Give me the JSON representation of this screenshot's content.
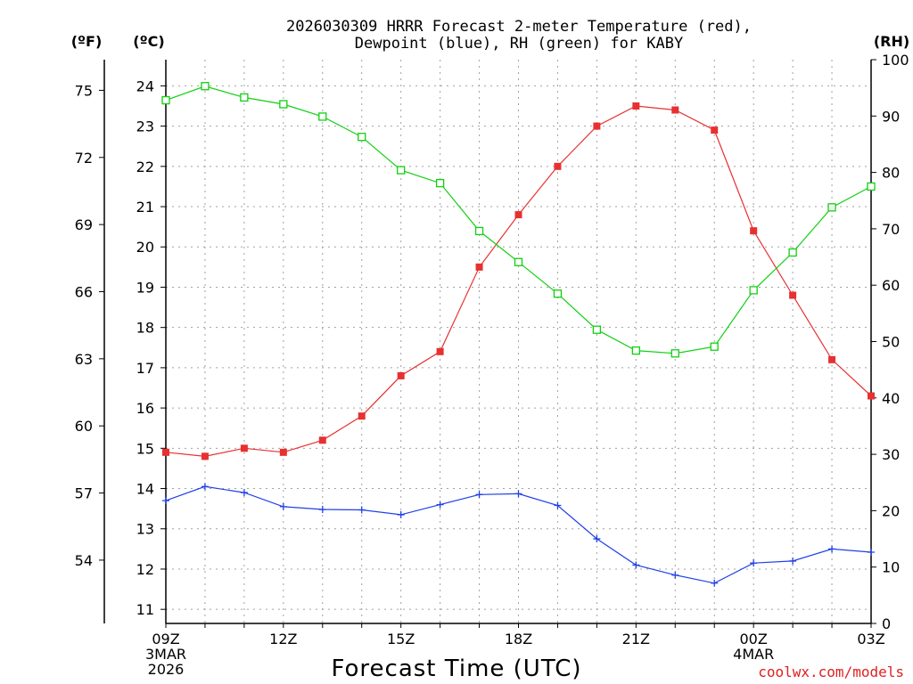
{
  "chart_data": {
    "type": "line",
    "title_line1": "2026030309 HRRR Forecast 2-meter Temperature (red),",
    "title_line2": "Dewpoint (blue), RH (green) for KABY",
    "unit_left_f": "(ºF)",
    "unit_left_c": "(ºC)",
    "unit_right": "(RH)",
    "xlabel": "Forecast Time (UTC)",
    "credit": "coolwx.com/models",
    "x_hours": [
      0,
      1,
      2,
      3,
      4,
      5,
      6,
      7,
      8,
      9,
      10,
      11,
      12,
      13,
      14,
      15,
      16,
      17,
      18
    ],
    "x_ticks": [
      {
        "hour": 0,
        "lines": [
          "09Z",
          "3MAR",
          "2026"
        ]
      },
      {
        "hour": 3,
        "lines": [
          "12Z"
        ]
      },
      {
        "hour": 6,
        "lines": [
          "15Z"
        ]
      },
      {
        "hour": 9,
        "lines": [
          "18Z"
        ]
      },
      {
        "hour": 12,
        "lines": [
          "21Z"
        ]
      },
      {
        "hour": 15,
        "lines": [
          "00Z",
          "4MAR"
        ]
      },
      {
        "hour": 18,
        "lines": [
          "03Z"
        ]
      }
    ],
    "celsius_axis": {
      "range": [
        10.65,
        24.65
      ],
      "ticks": [
        11,
        12,
        13,
        14,
        15,
        16,
        17,
        18,
        19,
        20,
        21,
        22,
        23,
        24
      ]
    },
    "fahrenheit_axis": {
      "ticks": [
        54,
        57,
        60,
        63,
        66,
        69,
        72,
        75
      ]
    },
    "rh_axis": {
      "range": [
        0,
        100
      ],
      "ticks": [
        0,
        10,
        20,
        30,
        40,
        50,
        60,
        70,
        80,
        90,
        100
      ]
    },
    "series": [
      {
        "name": "Temperature",
        "axis": "celsius",
        "color": "#e83030",
        "marker": "filled-square",
        "values": [
          14.9,
          14.8,
          15.0,
          14.9,
          15.2,
          15.8,
          16.8,
          17.4,
          19.5,
          20.8,
          22.0,
          23.0,
          23.5,
          23.4,
          22.9,
          20.4,
          18.8,
          17.2,
          16.3
        ]
      },
      {
        "name": "Dewpoint",
        "axis": "celsius",
        "color": "#2040e8",
        "marker": "plus",
        "values": [
          13.7,
          14.05,
          13.9,
          13.55,
          13.48,
          13.47,
          13.35,
          13.6,
          13.85,
          13.87,
          13.58,
          12.75,
          12.1,
          11.85,
          11.65,
          12.15,
          12.2,
          12.5,
          12.42
        ]
      },
      {
        "name": "RH",
        "axis": "rh",
        "color": "#10d010",
        "marker": "open-square",
        "values": [
          92.8,
          95.3,
          93.3,
          92.1,
          89.9,
          86.3,
          80.4,
          78.1,
          69.6,
          64.1,
          58.5,
          52.1,
          48.4,
          47.9,
          49.1,
          59.1,
          65.8,
          73.8,
          77.5
        ]
      }
    ]
  }
}
